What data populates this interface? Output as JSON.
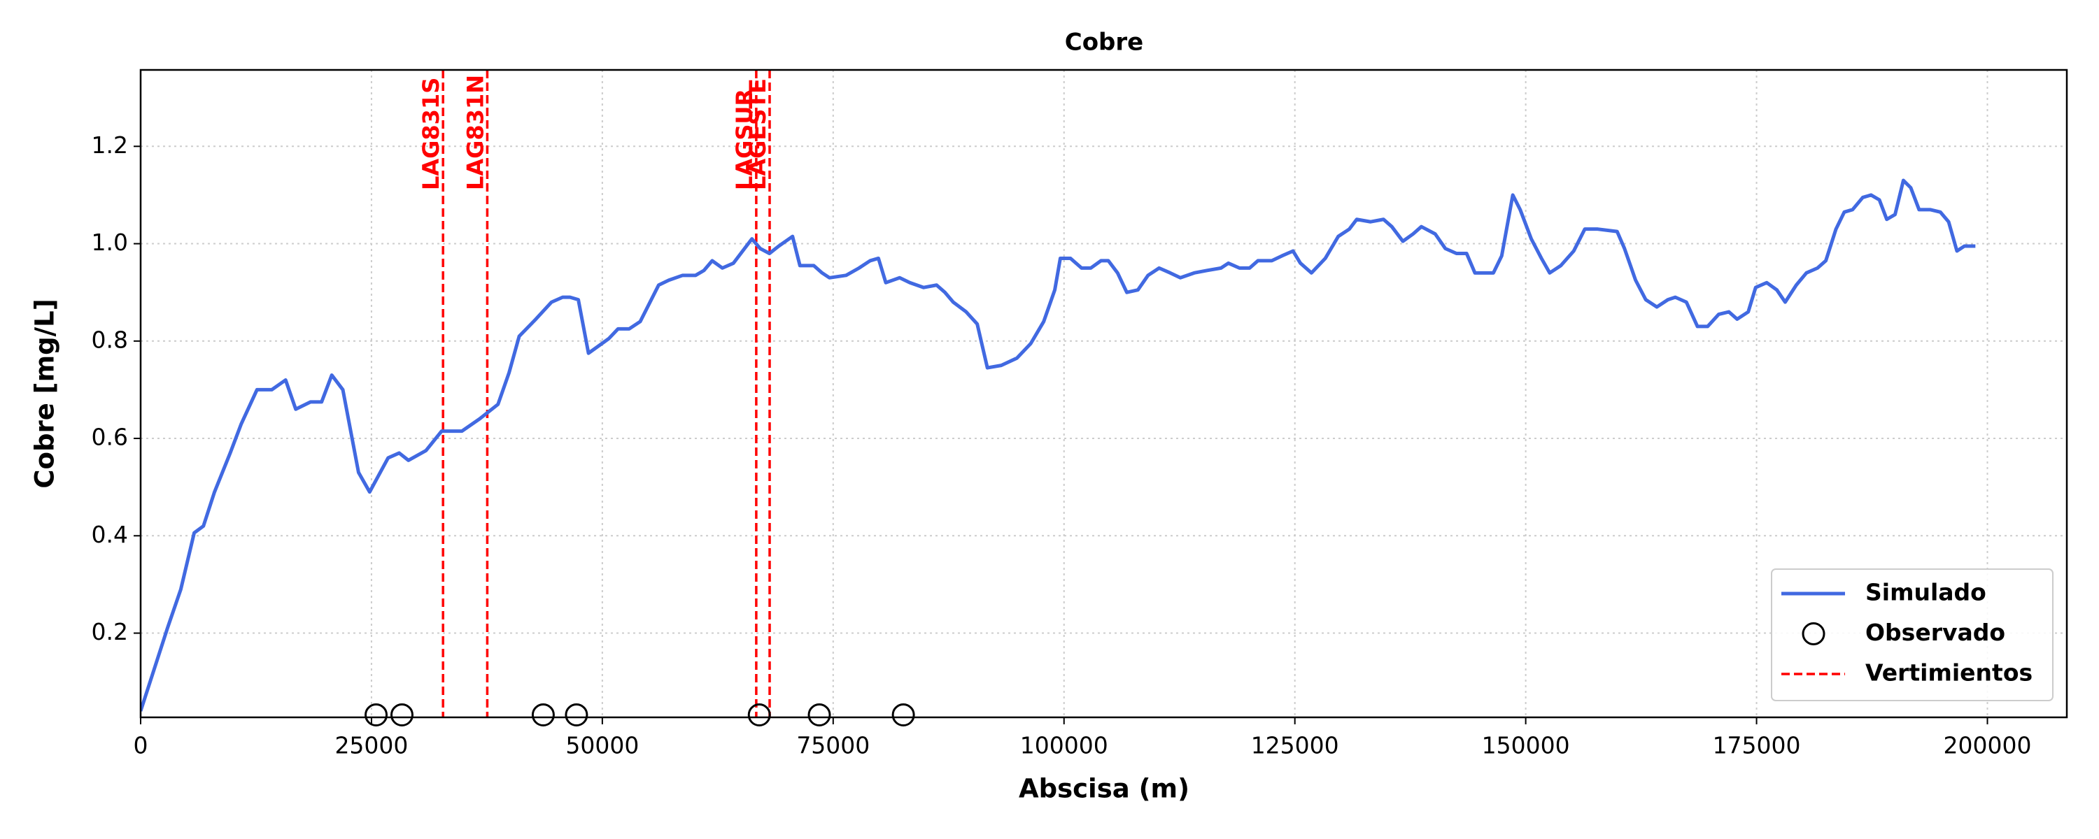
{
  "chart_data": {
    "type": "line",
    "title": "Cobre",
    "xlabel": "Abscisa (m)",
    "ylabel": "Cobre [mg/L]",
    "xlim": [
      0,
      208600
    ],
    "ylim": [
      0.027,
      1.357
    ],
    "xticks": [
      0,
      25000,
      50000,
      75000,
      100000,
      125000,
      150000,
      175000,
      200000
    ],
    "yticks": [
      0.2,
      0.4,
      0.6,
      0.8,
      {
        "value": 1.0,
        "label": "1.0"
      },
      1.2
    ],
    "grid": true,
    "legend": "lower right",
    "series": [
      {
        "name": "Simulado",
        "type": "line",
        "color": "#4169e1",
        "x": [
          0,
          2900,
          4350,
          5800,
          6800,
          8000,
          9700,
          10900,
          12600,
          14200,
          15700,
          16800,
          18400,
          19600,
          20700,
          21900,
          23600,
          24800,
          26800,
          28000,
          29000,
          30900,
          32600,
          34800,
          36700,
          38700,
          39900,
          41000,
          42800,
          44500,
          45700,
          46500,
          47400,
          48500,
          50700,
          51700,
          52900,
          54100,
          56100,
          57200,
          58700,
          60100,
          61000,
          61900,
          63000,
          64200,
          65400,
          66200,
          67100,
          68100,
          69100,
          70600,
          71400,
          72900,
          73800,
          74600,
          76400,
          77800,
          79000,
          79900,
          80700,
          82200,
          83300,
          84800,
          86200,
          87100,
          88000,
          89400,
          90600,
          91700,
          93200,
          94900,
          96400,
          97800,
          99000,
          99600,
          100700,
          101900,
          102900,
          104000,
          104800,
          105800,
          106800,
          108000,
          109100,
          110300,
          111500,
          112600,
          114100,
          115500,
          117000,
          117800,
          119000,
          120100,
          121000,
          122500,
          123600,
          124800,
          125600,
          126800,
          128300,
          129700,
          130900,
          131700,
          133200,
          134600,
          135500,
          136700,
          137800,
          138700,
          140200,
          141300,
          142500,
          143600,
          144500,
          145700,
          146500,
          147400,
          148600,
          149400,
          150600,
          151700,
          152600,
          153800,
          155200,
          156400,
          157800,
          159900,
          160700,
          161900,
          163000,
          164200,
          165400,
          166200,
          167400,
          168600,
          169700,
          170900,
          172000,
          172900,
          174100,
          174900,
          176100,
          177200,
          178100,
          179300,
          180400,
          181600,
          182500,
          183600,
          184500,
          185400,
          186500,
          187400,
          188300,
          189100,
          190000,
          190900,
          191700,
          192600,
          193800,
          194900,
          195800,
          196700,
          197500,
          198700
        ],
        "values": [
          0.04,
          0.21,
          0.29,
          0.406,
          0.42,
          0.49,
          0.57,
          0.63,
          0.7,
          0.7,
          0.72,
          0.66,
          0.675,
          0.675,
          0.73,
          0.7,
          0.53,
          0.49,
          0.56,
          0.57,
          0.555,
          0.575,
          0.615,
          0.615,
          0.64,
          0.67,
          0.735,
          0.81,
          0.845,
          0.88,
          0.89,
          0.89,
          0.885,
          0.775,
          0.805,
          0.825,
          0.825,
          0.84,
          0.915,
          0.925,
          0.935,
          0.935,
          0.945,
          0.965,
          0.95,
          0.96,
          0.99,
          1.01,
          0.99,
          0.98,
          0.995,
          1.015,
          0.955,
          0.955,
          0.94,
          0.93,
          0.935,
          0.95,
          0.965,
          0.97,
          0.92,
          0.93,
          0.92,
          0.91,
          0.915,
          0.9,
          0.88,
          0.86,
          0.835,
          0.745,
          0.75,
          0.765,
          0.795,
          0.84,
          0.905,
          0.97,
          0.97,
          0.95,
          0.95,
          0.965,
          0.965,
          0.94,
          0.9,
          0.905,
          0.935,
          0.95,
          0.94,
          0.93,
          0.94,
          0.945,
          0.95,
          0.96,
          0.95,
          0.95,
          0.965,
          0.965,
          0.975,
          0.985,
          0.96,
          0.94,
          0.97,
          1.015,
          1.03,
          1.05,
          1.045,
          1.05,
          1.035,
          1.005,
          1.02,
          1.035,
          1.02,
          0.99,
          0.98,
          0.98,
          0.94,
          0.94,
          0.94,
          0.975,
          1.1,
          1.07,
          1.01,
          0.97,
          0.94,
          0.955,
          0.985,
          1.03,
          1.03,
          1.025,
          0.99,
          0.925,
          0.885,
          0.87,
          0.885,
          0.89,
          0.88,
          0.83,
          0.83,
          0.855,
          0.86,
          0.845,
          0.86,
          0.91,
          0.92,
          0.905,
          0.88,
          0.915,
          0.94,
          0.95,
          0.965,
          1.03,
          1.065,
          1.07,
          1.095,
          1.1,
          1.09,
          1.05,
          1.06,
          1.13,
          1.115,
          1.07,
          1.07,
          1.065,
          1.045,
          0.985,
          0.995,
          0.995
        ]
      },
      {
        "name": "Observado",
        "type": "scatter",
        "color": "#000000",
        "x": [
          25500,
          28300,
          43600,
          47200,
          67000,
          73500,
          82600
        ],
        "values": [
          0.032,
          0.032,
          0.032,
          0.032,
          0.032,
          0.032,
          0.032
        ]
      }
    ],
    "vlines": {
      "name": "Vertimientos",
      "color": "#ff0000",
      "labels": [
        "LAG831S",
        "LAG831N",
        "LAGSUR",
        "LAGESTE"
      ],
      "x": [
        32750,
        37540,
        66670,
        68120
      ]
    }
  }
}
